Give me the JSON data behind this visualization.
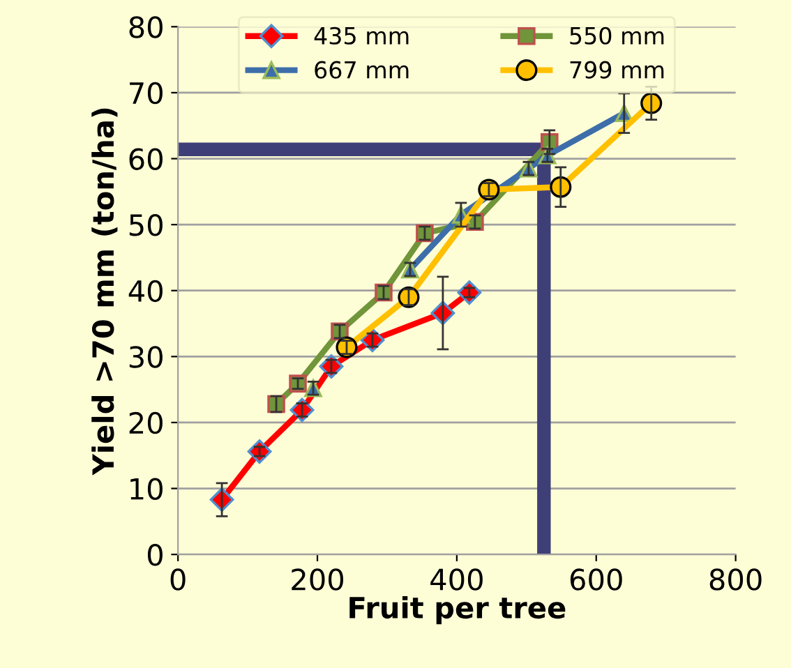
{
  "chart_data": {
    "type": "line",
    "xlabel": "Fruit per tree",
    "ylabel": "Yield >70 mm (ton/ha)",
    "xlim": [
      0,
      800
    ],
    "xticks": [
      0,
      200,
      400,
      600,
      800
    ],
    "ylim": [
      0,
      80
    ],
    "yticks": [
      0,
      10,
      20,
      30,
      40,
      50,
      60,
      70,
      80
    ],
    "grid": "y",
    "legend": "top",
    "line_style": "solid",
    "series": [
      {
        "name": "435 mm",
        "color": "#ff0000",
        "marker": "diamond",
        "x": [
          63,
          117,
          178,
          220,
          279,
          380,
          418
        ],
        "values": [
          8.3,
          15.6,
          21.9,
          28.5,
          32.5,
          36.6,
          39.7
        ],
        "errors": [
          2.5,
          0.7,
          1,
          1,
          1,
          5.5,
          0.7
        ]
      },
      {
        "name": "550 mm",
        "color": "#70953a",
        "marker": "square",
        "x": [
          141,
          172,
          232,
          295,
          354,
          426,
          533
        ],
        "values": [
          22.8,
          25.9,
          33.8,
          39.7,
          48.7,
          50.4,
          62.5
        ],
        "errors": [
          1.2,
          0.8,
          1,
          1,
          1,
          1,
          1.8
        ]
      },
      {
        "name": "667 mm",
        "color": "#3d6eaa",
        "marker": "triangle",
        "x": [
          194,
          240,
          333,
          406,
          503,
          530,
          640
        ],
        "values": [
          25.2,
          null,
          43.2,
          51.5,
          58.5,
          60.5,
          66.9
        ],
        "errors": [
          1,
          null,
          1,
          1.8,
          1,
          1,
          3
        ]
      },
      {
        "name": "799 mm",
        "color": "#ffc000",
        "marker": "circle",
        "x": [
          242,
          331,
          446,
          549,
          679
        ],
        "values": [
          31.4,
          39,
          55.3,
          55.7,
          68.4
        ],
        "errors": [
          1,
          1.2,
          1,
          3,
          2.5
        ]
      },
      {
        "color": "#3f3f78",
        "marker": "none",
        "x": [
          4,
          525,
          525
        ],
        "values": [
          61.4,
          61.4,
          1
        ]
      }
    ]
  }
}
